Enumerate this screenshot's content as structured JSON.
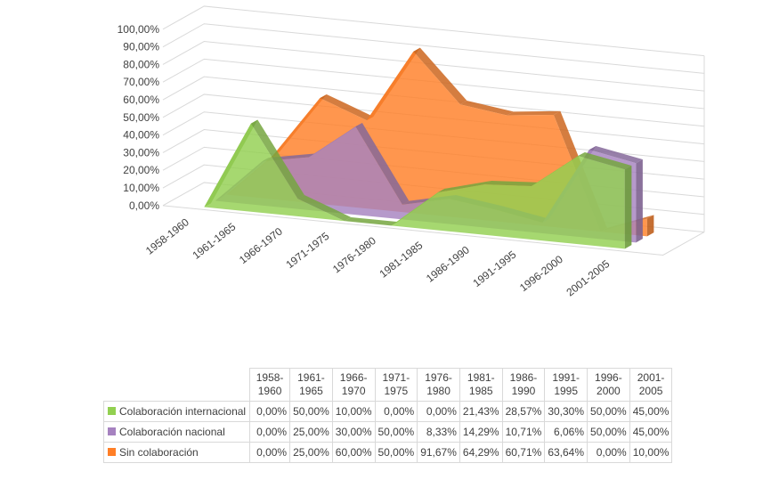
{
  "chart_data": {
    "type": "area",
    "variant": "3d-area",
    "categories": [
      "1958-1960",
      "1961-1965",
      "1966-1970",
      "1971-1975",
      "1976-1980",
      "1981-1985",
      "1986-1990",
      "1991-1995",
      "1996-2000",
      "2001-2005"
    ],
    "series": [
      {
        "name": "Colaboración internacional",
        "color": "#92d050",
        "values": [
          0.0,
          50.0,
          10.0,
          0.0,
          0.0,
          21.43,
          28.57,
          30.3,
          50.0,
          45.0
        ]
      },
      {
        "name": "Colaboración nacional",
        "color": "#a682c0",
        "values": [
          0.0,
          25.0,
          30.0,
          50.0,
          8.33,
          14.29,
          10.71,
          6.06,
          50.0,
          45.0
        ]
      },
      {
        "name": "Sin colaboración",
        "color": "#ff7f27",
        "values": [
          0.0,
          25.0,
          60.0,
          50.0,
          91.67,
          64.29,
          60.71,
          63.64,
          0.0,
          10.0
        ]
      }
    ],
    "value_labels": {
      "Colaboración internacional": [
        "0,00%",
        "50,00%",
        "10,00%",
        "0,00%",
        "0,00%",
        "21,43%",
        "28,57%",
        "30,30%",
        "50,00%",
        "45,00%"
      ],
      "Colaboración nacional": [
        "0,00%",
        "25,00%",
        "30,00%",
        "50,00%",
        "8,33%",
        "14,29%",
        "10,71%",
        "6,06%",
        "50,00%",
        "45,00%"
      ],
      "Sin colaboración": [
        "0,00%",
        "25,00%",
        "60,00%",
        "50,00%",
        "91,67%",
        "64,29%",
        "60,71%",
        "63,64%",
        "0,00%",
        "10,00%"
      ]
    },
    "table_headers": [
      [
        "1958-",
        "1960"
      ],
      [
        "1961-",
        "1965"
      ],
      [
        "1966-",
        "1970"
      ],
      [
        "1971-",
        "1975"
      ],
      [
        "1976-",
        "1980"
      ],
      [
        "1981-",
        "1985"
      ],
      [
        "1986-",
        "1990"
      ],
      [
        "1991-",
        "1995"
      ],
      [
        "1996-",
        "2000"
      ],
      [
        "2001-",
        "2005"
      ]
    ],
    "y_ticks": [
      "0,00%",
      "10,00%",
      "20,00%",
      "30,00%",
      "40,00%",
      "50,00%",
      "60,00%",
      "70,00%",
      "80,00%",
      "90,00%",
      "100,00%"
    ],
    "ylim": [
      0,
      100
    ],
    "grid": true,
    "legend": "data-table"
  }
}
